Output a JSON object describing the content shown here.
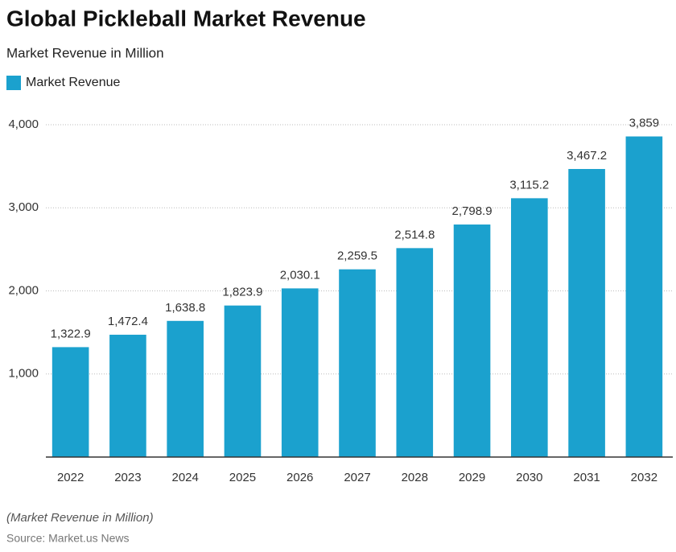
{
  "chart_data": {
    "type": "bar",
    "title": "Global Pickleball Market Revenue",
    "subtitle": "Market Revenue in Million",
    "categories": [
      "2022",
      "2023",
      "2024",
      "2025",
      "2026",
      "2027",
      "2028",
      "2029",
      "2030",
      "2031",
      "2032"
    ],
    "series": [
      {
        "name": "Market Revenue",
        "color": "#1ba1ce",
        "values": [
          1322.9,
          1472.4,
          1638.8,
          1823.9,
          2030.1,
          2259.5,
          2514.8,
          2798.9,
          3115.2,
          3467.2,
          3859
        ],
        "value_labels": [
          "1,322.9",
          "1,472.4",
          "1,638.8",
          "1,823.9",
          "2,030.1",
          "2,259.5",
          "2,514.8",
          "2,798.9",
          "3,115.2",
          "3,467.2",
          "3,859"
        ]
      }
    ],
    "ylim": [
      0,
      4000
    ],
    "yticks": [
      {
        "value": 1000,
        "label": "1,000"
      },
      {
        "value": 2000,
        "label": "2,000"
      },
      {
        "value": 3000,
        "label": "3,000"
      },
      {
        "value": 4000,
        "label": "4,000"
      }
    ],
    "grid": true,
    "note": "(Market Revenue in Million)",
    "source": "Source: Market.us News"
  }
}
